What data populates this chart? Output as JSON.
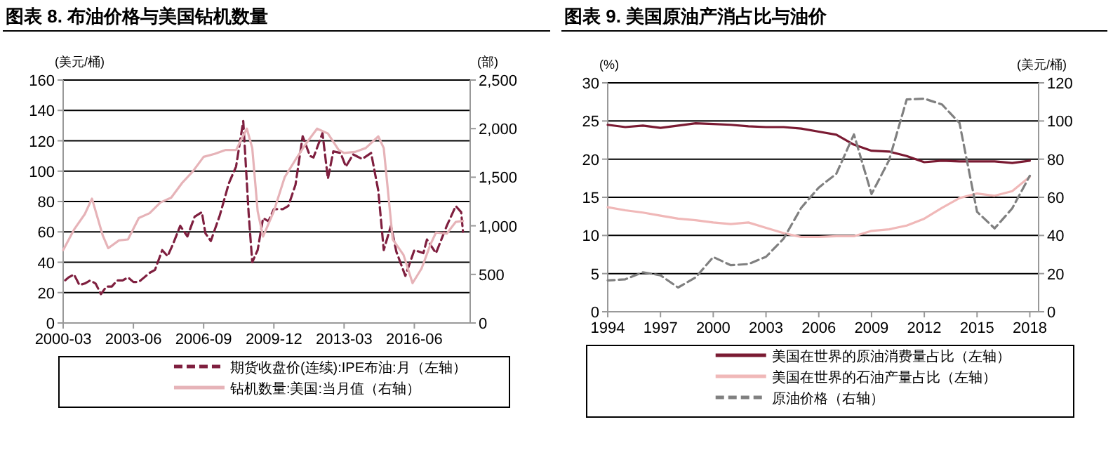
{
  "chart_data": [
    {
      "type": "line",
      "title": "图表 8. 布油价格与美国钻机数量",
      "ylabel": "(美元/桶)",
      "y2label": "(部)",
      "grid": "y",
      "legend": "bottom",
      "xlim": [
        "2000-03",
        "2019-01"
      ],
      "xticks": [
        "2000-03",
        "2003-06",
        "2006-09",
        "2009-12",
        "2013-03",
        "2016-06"
      ],
      "ylim": [
        0,
        160
      ],
      "yticks": [
        0,
        20,
        40,
        60,
        80,
        100,
        120,
        140,
        160
      ],
      "y2lim": [
        0,
        2500
      ],
      "y2ticks": [
        0,
        500,
        {
          "value": 1000,
          "label": "1,000"
        },
        {
          "value": 1500,
          "label": "1,500"
        },
        {
          "value": 2000,
          "label": "2,000"
        },
        {
          "value": 2500,
          "label": "2,500"
        }
      ],
      "series": [
        {
          "name": "期货收盘价(连续):IPE布油:月（左轴）",
          "color": "#7f1f3f",
          "line_style": "dashed",
          "x": [
            "2000-03",
            "2000-06",
            "2000-09",
            "2000-12",
            "2001-03",
            "2001-06",
            "2001-09",
            "2001-12",
            "2002-03",
            "2002-06",
            "2002-09",
            "2002-12",
            "2003-03",
            "2003-06",
            "2003-09",
            "2003-12",
            "2004-03",
            "2004-06",
            "2004-10",
            "2005-01",
            "2005-04",
            "2005-08",
            "2005-12",
            "2006-04",
            "2006-08",
            "2006-10",
            "2007-01",
            "2007-06",
            "2007-11",
            "2008-03",
            "2008-07",
            "2008-10",
            "2008-12",
            "2009-03",
            "2009-06",
            "2009-09",
            "2009-12",
            "2010-05",
            "2010-08",
            "2010-12",
            "2011-04",
            "2011-08",
            "2011-10",
            "2012-03",
            "2012-06",
            "2012-09",
            "2013-01",
            "2013-04",
            "2013-08",
            "2014-01",
            "2014-06",
            "2014-10",
            "2015-01",
            "2015-05",
            "2015-08",
            "2016-01",
            "2016-06",
            "2016-11",
            "2017-01",
            "2017-06",
            "2017-12",
            "2018-05",
            "2018-08",
            "2018-09"
          ],
          "values": [
            27,
            30,
            32,
            25,
            26,
            28,
            26,
            19,
            24,
            24,
            28,
            28,
            30,
            27,
            27,
            30,
            33,
            35,
            48,
            44,
            52,
            64,
            57,
            70,
            73,
            59,
            54,
            71,
            92,
            103,
            133,
            72,
            40,
            48,
            69,
            67,
            75,
            75,
            77,
            91,
            123,
            110,
            109,
            125,
            95,
            113,
            112,
            103,
            111,
            108,
            112,
            87,
            48,
            64,
            47,
            31,
            48,
            46,
            55,
            46,
            64,
            77,
            73,
            60
          ]
        },
        {
          "name": "钻机数量:美国:当月值（右轴）",
          "color": "#e6b3b8",
          "line_style": "solid",
          "axis": "y2",
          "x": [
            "2000-03",
            "2000-09",
            "2001-03",
            "2001-07",
            "2002-01",
            "2002-04",
            "2002-10",
            "2003-03",
            "2003-09",
            "2004-03",
            "2004-09",
            "2005-03",
            "2005-09",
            "2006-03",
            "2006-09",
            "2007-03",
            "2007-09",
            "2008-03",
            "2008-09",
            "2008-12",
            "2009-03",
            "2009-06",
            "2009-12",
            "2010-06",
            "2010-12",
            "2011-06",
            "2011-12",
            "2012-06",
            "2012-12",
            "2013-03",
            "2013-09",
            "2014-03",
            "2014-10",
            "2015-01",
            "2015-06",
            "2015-12",
            "2016-05",
            "2016-10",
            "2017-03",
            "2017-06",
            "2017-12",
            "2018-05",
            "2018-09"
          ],
          "values": [
            750,
            960,
            1120,
            1280,
            900,
            770,
            850,
            860,
            1080,
            1130,
            1240,
            1290,
            1440,
            1560,
            1710,
            1740,
            1780,
            1780,
            2000,
            1800,
            1150,
            890,
            1150,
            1500,
            1680,
            1850,
            2000,
            1950,
            1780,
            1750,
            1760,
            1800,
            1920,
            1800,
            860,
            700,
            410,
            560,
            810,
            930,
            920,
            1040,
            1050
          ]
        }
      ]
    },
    {
      "type": "line",
      "title": "图表 9. 美国原油产消占比与油价",
      "ylabel": "(%)",
      "y2label": "(美元/桶)",
      "grid": "y",
      "legend": "bottom",
      "xlim": [
        1994,
        2018.5
      ],
      "xticks": [
        1994,
        1997,
        2000,
        2003,
        2006,
        2009,
        2012,
        2015,
        2018
      ],
      "ylim": [
        0,
        30
      ],
      "yticks": [
        0,
        5,
        10,
        15,
        20,
        25,
        30
      ],
      "y2lim": [
        0,
        120
      ],
      "y2ticks": [
        0,
        20,
        40,
        60,
        80,
        100,
        120
      ],
      "series": [
        {
          "name": "美国在世界的原油消费量占比（左轴）",
          "color": "#7a1a32",
          "line_style": "solid",
          "x": [
            1994,
            1995,
            1996,
            1997,
            1998,
            1999,
            2000,
            2001,
            2002,
            2003,
            2004,
            2005,
            2006,
            2007,
            2008,
            2009,
            2010,
            2011,
            2012,
            2013,
            2014,
            2015,
            2016,
            2017,
            2018
          ],
          "values": [
            24.5,
            24.2,
            24.4,
            24.1,
            24.4,
            24.7,
            24.6,
            24.5,
            24.3,
            24.2,
            24.2,
            24.0,
            23.6,
            23.2,
            21.9,
            21.1,
            21.0,
            20.4,
            19.6,
            19.8,
            19.7,
            19.7,
            19.7,
            19.5,
            19.8
          ]
        },
        {
          "name": "美国在世界的石油产量占比（左轴）",
          "color": "#f0b8b8",
          "line_style": "solid",
          "x": [
            1994,
            1995,
            1996,
            1997,
            1998,
            1999,
            2000,
            2001,
            2002,
            2003,
            2004,
            2005,
            2006,
            2007,
            2008,
            2009,
            2010,
            2011,
            2012,
            2013,
            2014,
            2015,
            2016,
            2017,
            2018
          ],
          "values": [
            13.7,
            13.3,
            13.0,
            12.6,
            12.2,
            12.0,
            11.7,
            11.5,
            11.7,
            11.0,
            10.3,
            9.8,
            9.8,
            9.9,
            9.9,
            10.6,
            10.8,
            11.3,
            12.2,
            13.6,
            14.9,
            15.5,
            15.2,
            15.8,
            17.7
          ]
        },
        {
          "name": "原油价格（右轴）",
          "color": "#808080",
          "line_style": "dashed",
          "axis": "y2",
          "x": [
            1994,
            1995,
            1996,
            1997,
            1998,
            1999,
            2000,
            2001,
            2002,
            2003,
            2004,
            2005,
            2006,
            2007,
            2008,
            2009,
            2010,
            2011,
            2012,
            2013,
            2014,
            2015,
            2016,
            2017,
            2018
          ],
          "values": [
            16.4,
            17.0,
            20.7,
            19.1,
            12.7,
            18.0,
            28.7,
            24.4,
            25.0,
            28.8,
            38.3,
            54.5,
            65.1,
            72.4,
            93.0,
            61.7,
            79.5,
            111.3,
            111.7,
            108.7,
            99.0,
            52.4,
            43.7,
            54.2,
            71.3
          ]
        }
      ]
    }
  ]
}
